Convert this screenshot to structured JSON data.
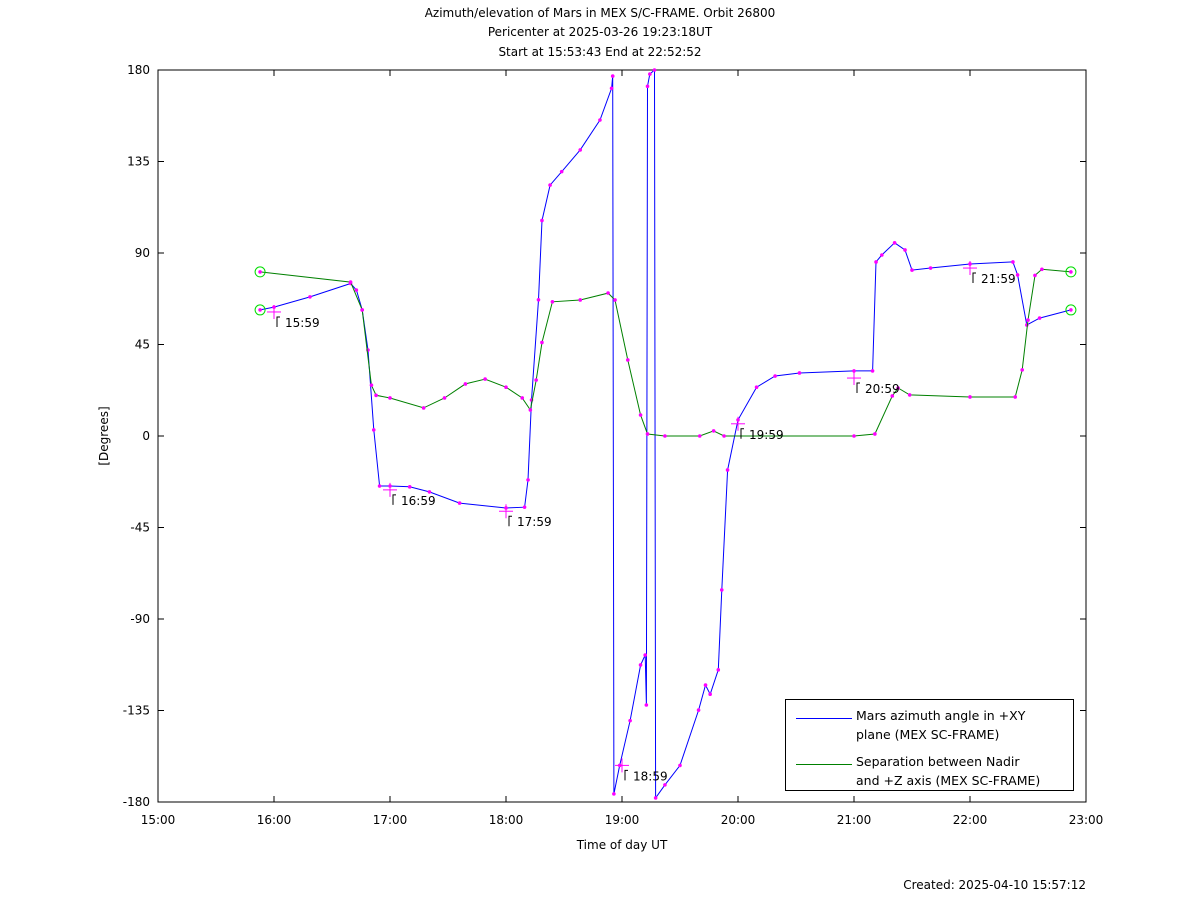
{
  "chart_data": {
    "type": "line",
    "title": "Azimuth/elevation of Mars in MEX S/C-FRAME.  Orbit 26800",
    "subtitle": [
      "Pericenter at 2025-03-26 19:23:18UT",
      "Start at 15:53:43 End at 22:52:52"
    ],
    "xlabel": "Time of day UT",
    "ylabel": "[Degrees]",
    "footer": "Created: 2025-04-10 15:57:12",
    "xlim": [
      15,
      23
    ],
    "xticks": [
      {
        "value": 15,
        "label": "15:00"
      },
      {
        "value": 16,
        "label": "16:00"
      },
      {
        "value": 17,
        "label": "17:00"
      },
      {
        "value": 18,
        "label": "18:00"
      },
      {
        "value": 19,
        "label": "19:00"
      },
      {
        "value": 20,
        "label": "20:00"
      },
      {
        "value": 21,
        "label": "21:00"
      },
      {
        "value": 22,
        "label": "22:00"
      },
      {
        "value": 23,
        "label": "23:00"
      }
    ],
    "ylim": [
      -180,
      180
    ],
    "yticks": [
      180,
      135,
      90,
      45,
      0,
      -45,
      -90,
      -135,
      -180
    ],
    "legend": "lower right",
    "series": [
      {
        "name": "Mars azimuth angle in +XY\nplane (MEX SC-FRAME)",
        "color": "#0000ff",
        "x": [
          15.88,
          16.0,
          16.31,
          16.66,
          16.71,
          16.76,
          16.81,
          16.86,
          16.91,
          17.0,
          17.17,
          17.34,
          17.6,
          18.0,
          18.16,
          18.19,
          18.22,
          18.28,
          18.31,
          18.38,
          18.48,
          18.64,
          18.81,
          18.91,
          18.92,
          18.93,
          18.98,
          19.07,
          19.16,
          19.2,
          19.21,
          19.22,
          19.24,
          19.28,
          19.29,
          19.37,
          19.5,
          19.66,
          19.72,
          19.76,
          19.83,
          19.86,
          19.91,
          20.0,
          20.16,
          20.32,
          20.53,
          21.0,
          21.16,
          21.19,
          21.24,
          21.35,
          21.44,
          21.5,
          21.66,
          22.0,
          22.37,
          22.41,
          22.49,
          22.6,
          22.87
        ],
        "values": [
          62,
          63.4,
          68.4,
          75,
          71.8,
          62,
          42.3,
          3,
          -24.6,
          -24.6,
          -25,
          -27.5,
          -33,
          -35.4,
          -35,
          -21.6,
          17.7,
          67,
          106,
          123.4,
          130,
          140.7,
          155.4,
          171,
          177,
          -176,
          -162,
          -140,
          -112.6,
          -107.7,
          -132.3,
          172,
          178,
          180,
          -178,
          -171.6,
          -162,
          -134.8,
          -122.5,
          -127,
          -115,
          -75.7,
          -16.7,
          7.9,
          24,
          29.5,
          31,
          32,
          32,
          85.6,
          89,
          95,
          91.5,
          81.6,
          82.6,
          84.6,
          85.6,
          79.2,
          54.6,
          58,
          62
        ]
      },
      {
        "name": "Separation between Nadir\nand +Z axis (MEX SC-FRAME)",
        "color": "#008000",
        "x": [
          15.88,
          16.66,
          16.76,
          16.84,
          16.88,
          17.0,
          17.29,
          17.47,
          17.65,
          17.82,
          18.0,
          18.14,
          18.21,
          18.26,
          18.31,
          18.4,
          18.64,
          18.88,
          18.94,
          19.05,
          19.16,
          19.22,
          19.37,
          19.67,
          19.79,
          19.88,
          21.0,
          21.18,
          21.33,
          21.38,
          21.48,
          22.0,
          22.39,
          22.45,
          22.5,
          22.56,
          22.62,
          22.87
        ],
        "values": [
          80.7,
          75.7,
          62,
          25,
          20,
          18.7,
          13.8,
          18.7,
          25.6,
          28,
          24,
          18.7,
          12.8,
          27.5,
          46,
          66,
          66.9,
          70.3,
          66.9,
          37.4,
          10.3,
          1,
          0,
          0,
          2.5,
          0,
          0,
          1,
          19.7,
          23.6,
          20.2,
          19.2,
          19.2,
          32.5,
          57,
          79,
          82,
          80.7
        ]
      }
    ],
    "annotations": [
      {
        "label": "15:59",
        "x": 16.0,
        "y": 61
      },
      {
        "label": "16:59",
        "x": 17.0,
        "y": -26.5
      },
      {
        "label": "17:59",
        "x": 18.0,
        "y": -37
      },
      {
        "label": "18:59",
        "x": 19.0,
        "y": -162
      },
      {
        "label": "19:59",
        "x": 20.0,
        "y": 6
      },
      {
        "label": "20:59",
        "x": 21.0,
        "y": 28.5
      },
      {
        "label": "21:59",
        "x": 22.0,
        "y": 82.6
      }
    ]
  }
}
